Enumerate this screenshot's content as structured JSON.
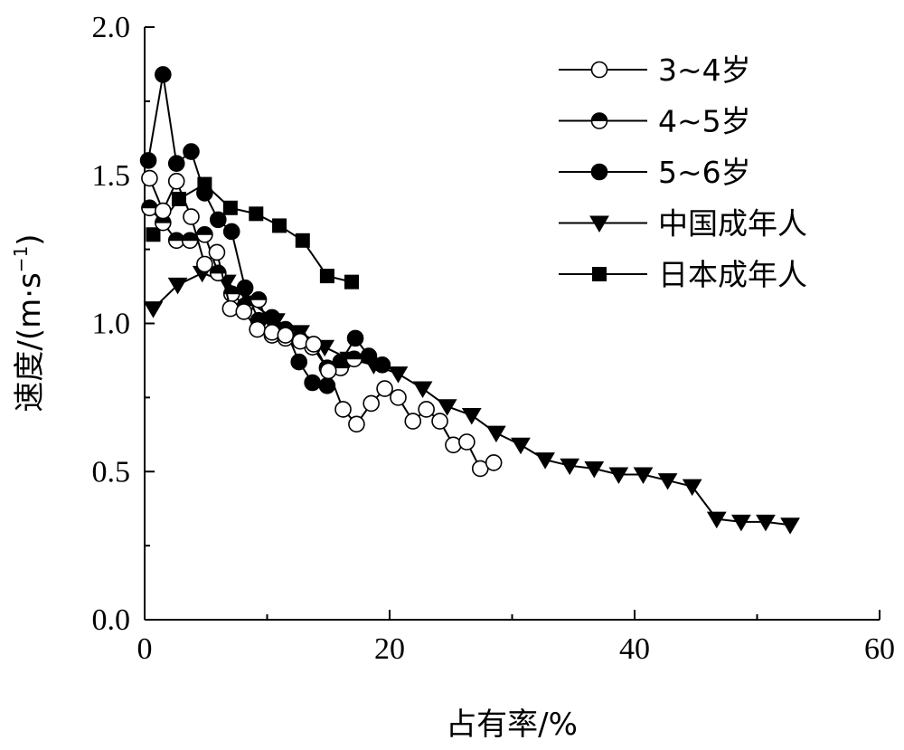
{
  "chart_data": {
    "type": "line",
    "xlabel": "占有率/%",
    "ylabel": "速度/(m·s",
    "ylabel_exponent": "−1",
    "ylabel_suffix": ")",
    "xlim": [
      0,
      60
    ],
    "ylim": [
      0,
      2.0
    ],
    "xticks": [
      0,
      20,
      40,
      60
    ],
    "xtick_labels": [
      "0",
      "20",
      "40",
      "60"
    ],
    "yticks": [
      0,
      0.5,
      1.0,
      1.5,
      2.0
    ],
    "ytick_labels": [
      "0.0",
      "0.5",
      "1.0",
      "1.5",
      "2.0"
    ],
    "grid": false,
    "legend_position": "top-right",
    "series": [
      {
        "name": "3~4岁",
        "marker": "circle-open",
        "x": [
          0.4,
          1.5,
          2.6,
          3.8,
          4.9,
          5.9,
          7.0,
          8.1,
          9.2,
          10.4,
          11.5,
          12.7,
          13.8,
          15.0,
          16.2,
          17.3,
          18.5,
          19.6,
          20.7,
          21.9,
          23.0,
          24.1,
          25.2,
          26.3,
          27.4,
          28.5
        ],
        "y": [
          1.49,
          1.38,
          1.48,
          1.36,
          1.2,
          1.24,
          1.05,
          1.04,
          0.98,
          0.97,
          0.96,
          0.94,
          0.93,
          0.84,
          0.71,
          0.66,
          0.73,
          0.78,
          0.75,
          0.67,
          0.71,
          0.67,
          0.59,
          0.6,
          0.51,
          0.53
        ]
      },
      {
        "name": "4~5岁",
        "marker": "circle-half",
        "x": [
          0.4,
          1.5,
          2.6,
          3.7,
          4.9,
          6.0,
          7.1,
          8.2,
          9.3,
          10.4,
          11.5,
          12.6,
          13.7,
          14.9,
          16.0,
          17.1
        ],
        "y": [
          1.39,
          1.34,
          1.28,
          1.28,
          1.3,
          1.17,
          1.1,
          1.06,
          1.08,
          0.96,
          0.95,
          0.95,
          0.92,
          0.85,
          0.85,
          0.88
        ]
      },
      {
        "name": "5~6岁",
        "marker": "circle-filled",
        "x": [
          0.3,
          1.5,
          2.6,
          3.8,
          4.9,
          6.0,
          7.1,
          8.2,
          9.3,
          10.4,
          11.5,
          12.6,
          13.7,
          14.9,
          16.0,
          17.2,
          18.3,
          19.4
        ],
        "y": [
          1.55,
          1.84,
          1.54,
          1.58,
          1.44,
          1.35,
          1.31,
          1.12,
          1.01,
          1.02,
          0.98,
          0.87,
          0.8,
          0.79,
          0.87,
          0.95,
          0.89,
          0.86
        ]
      },
      {
        "name": "中国成年人",
        "marker": "triangle-down",
        "x": [
          0.7,
          2.7,
          4.7,
          6.7,
          8.7,
          10.7,
          12.7,
          14.7,
          16.7,
          18.7,
          20.7,
          22.7,
          24.7,
          26.7,
          28.7,
          30.7,
          32.7,
          34.7,
          36.7,
          38.7,
          40.7,
          42.7,
          44.7,
          46.7,
          48.7,
          50.7,
          52.7
        ],
        "y": [
          1.05,
          1.13,
          1.17,
          1.14,
          1.07,
          1.01,
          0.97,
          0.92,
          0.88,
          0.86,
          0.83,
          0.78,
          0.72,
          0.69,
          0.63,
          0.59,
          0.54,
          0.52,
          0.51,
          0.49,
          0.49,
          0.47,
          0.45,
          0.34,
          0.33,
          0.33,
          0.32
        ]
      },
      {
        "name": "日本成年人",
        "marker": "square-filled",
        "x": [
          0.7,
          2.8,
          4.9,
          7.0,
          9.1,
          11.0,
          12.9,
          14.9,
          16.9
        ],
        "y": [
          1.3,
          1.42,
          1.47,
          1.39,
          1.37,
          1.33,
          1.28,
          1.16,
          1.14
        ]
      }
    ]
  }
}
